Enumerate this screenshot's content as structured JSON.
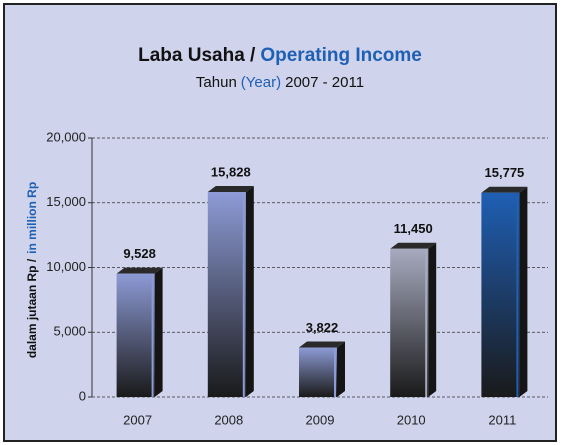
{
  "chart_data": {
    "type": "bar",
    "title": [
      "Laba Usaha /",
      "Operating Income"
    ],
    "subtitle": [
      "Tahun",
      "(Year)",
      "2007 - 2011"
    ],
    "y_label": [
      "dalam jutaan Rp /",
      "in million Rp"
    ],
    "categories": [
      "2007",
      "2008",
      "2009",
      "2010",
      "2011"
    ],
    "values": [
      9528,
      15828,
      3822,
      11450,
      15775
    ],
    "value_labels": [
      "9,528",
      "15,828",
      "3,822",
      "11,450",
      "15,775"
    ],
    "colors": [
      "#8d9bd6",
      "#8d9bd6",
      "#8d9bd6",
      "#a7abbf",
      "#1f5fb4"
    ],
    "accent_color": "#1f5fb4",
    "ylim": [
      0,
      20000
    ],
    "yticks": [
      0,
      {
        "value": 5000,
        "label": "5,000"
      },
      {
        "value": 10000,
        "label": "10,000"
      },
      {
        "value": 15000,
        "label": "15,000"
      },
      {
        "value": 20000,
        "label": "20,000"
      }
    ],
    "grid": true
  }
}
